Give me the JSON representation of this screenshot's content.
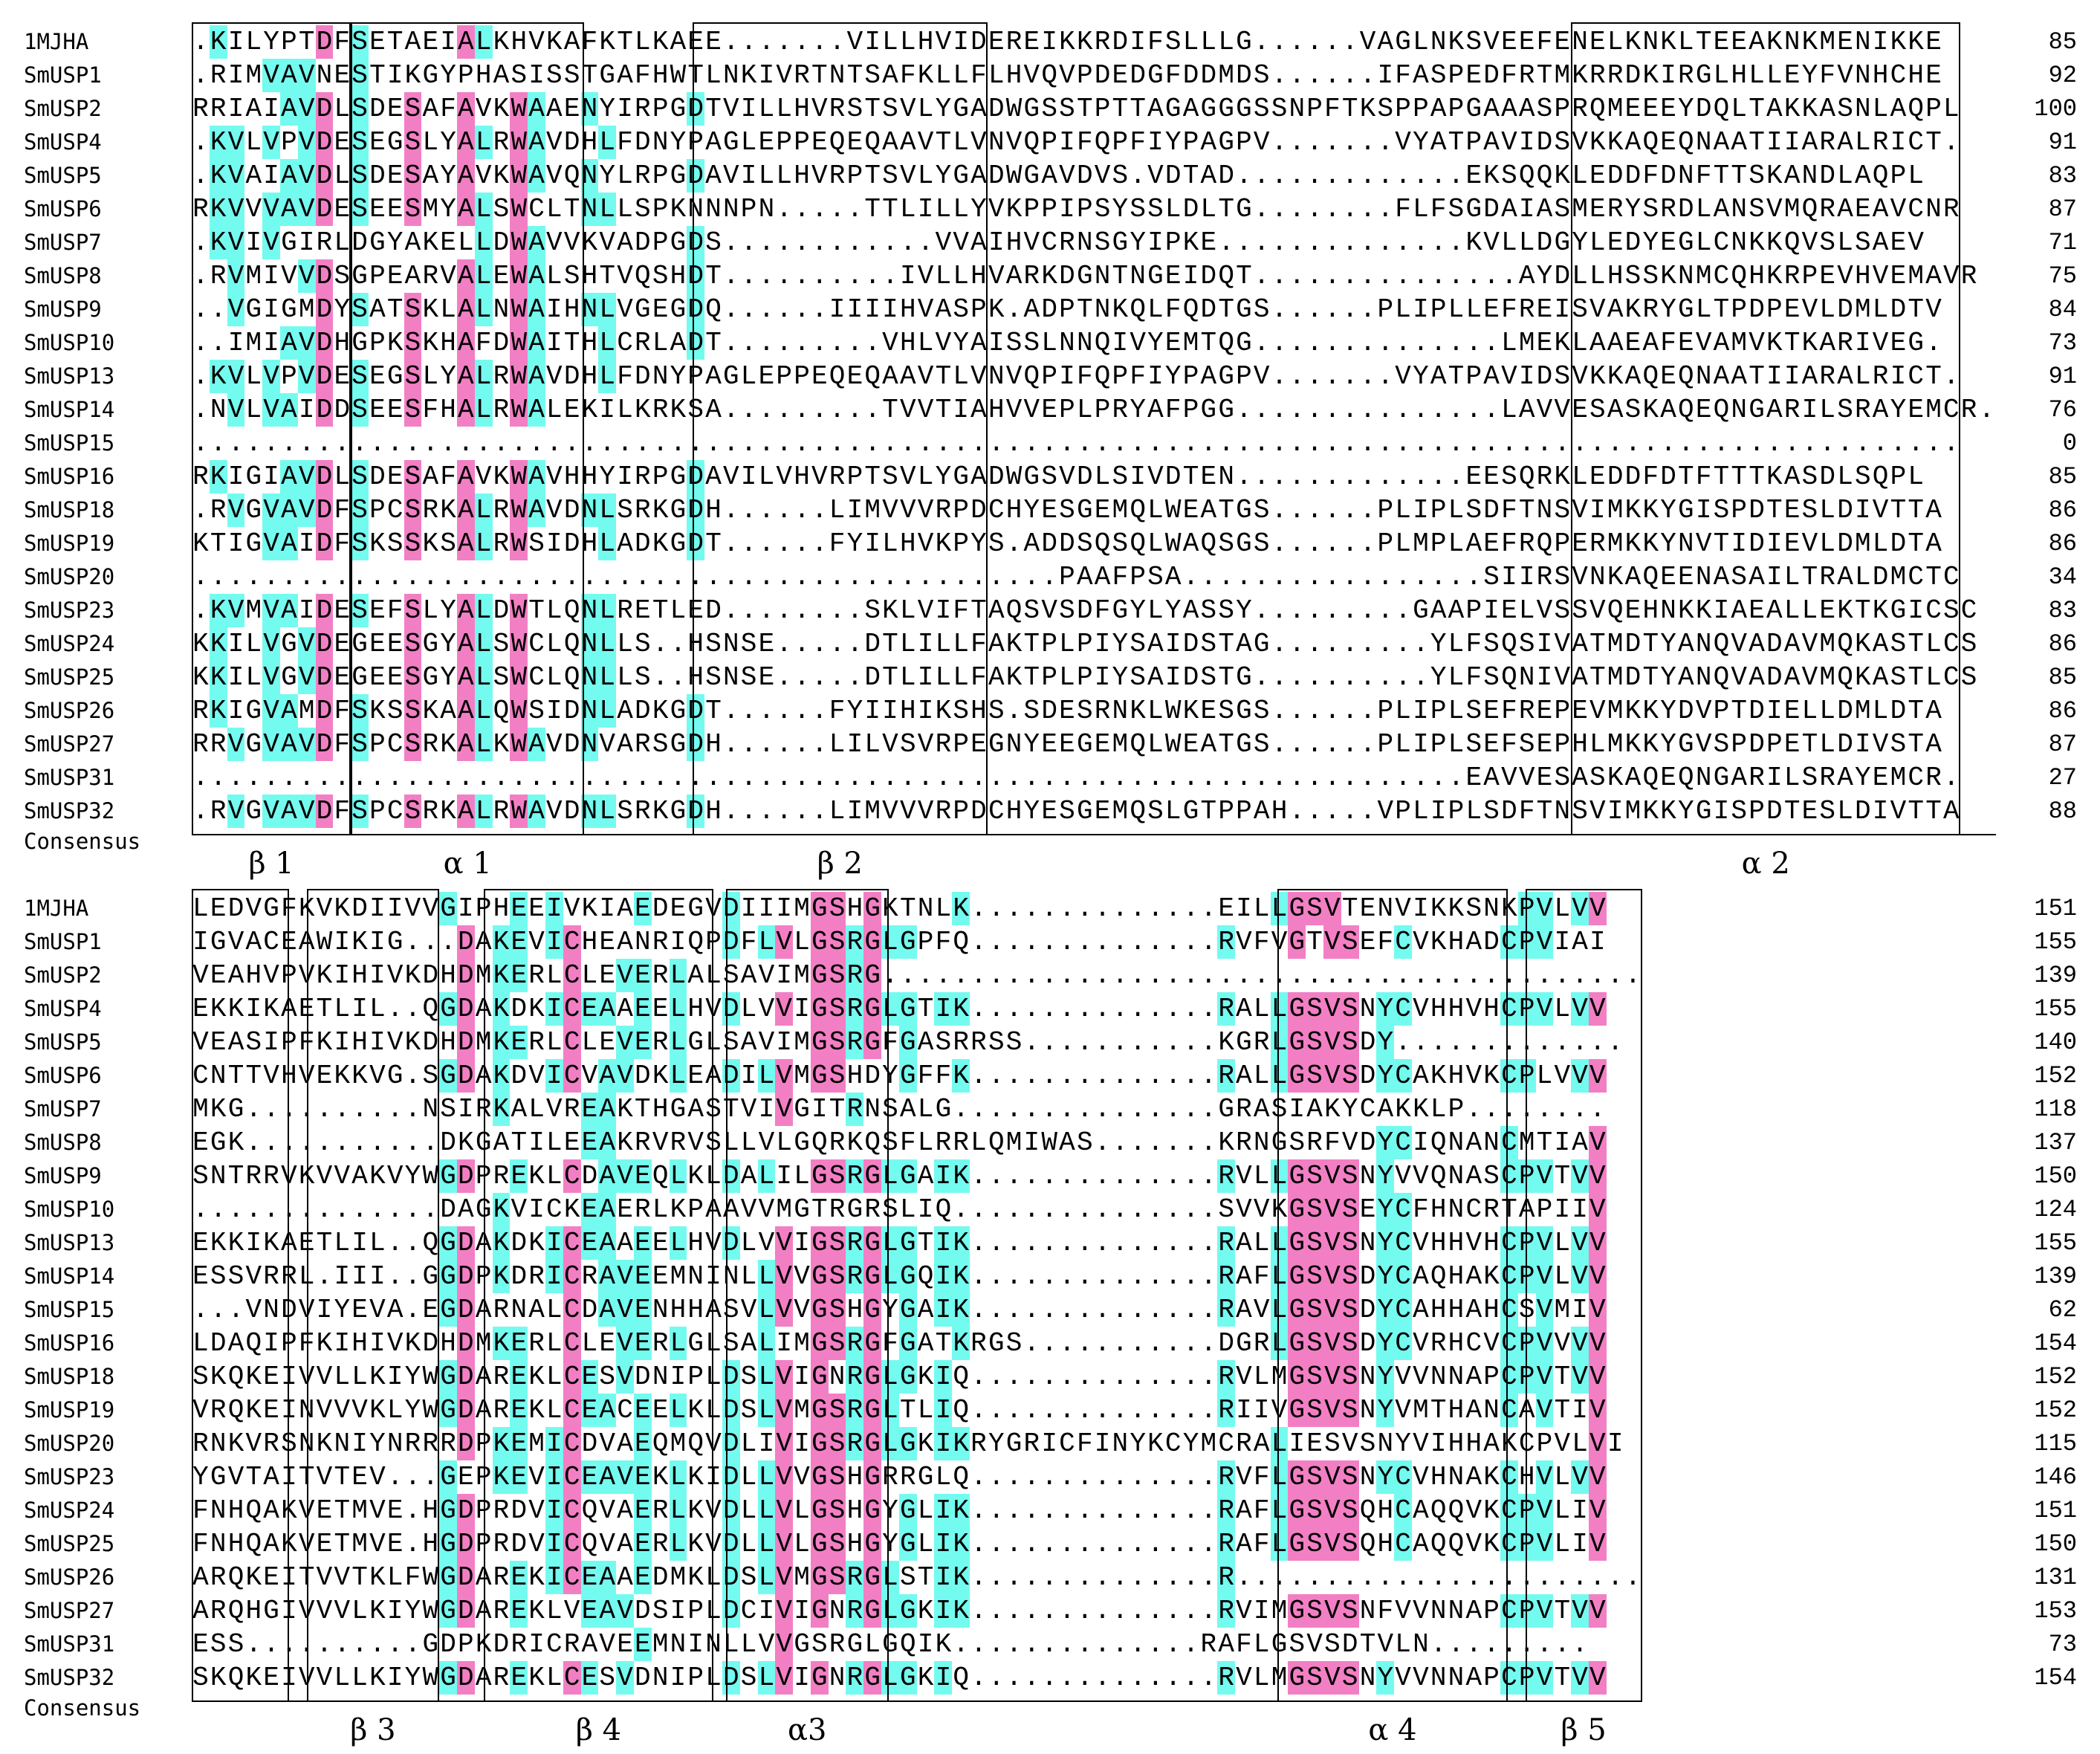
{
  "blocks": [
    {
      "rows": [
        {
          "name": "1MJHA",
          "sequence": ".KILYPTDFSETAEIALKHVKAFKTLKAEE.......VILLHVIDEREIKKRDIFSLLLG......VAGLNKSVEEFENELKNKLTEEAKNKMENIKKE",
          "end": 85
        },
        {
          "name": "SmUSP1",
          "sequence": ".RIMVAVNESTIKGYPHASISSTGAFHWTLNKIVRTNTSAFKLLFLHVQVPDEDGFDDMDS......IFASPEDFRTMKRRDKIRGLHLLEYFVNHCHE",
          "end": 92
        },
        {
          "name": "SmUSP2",
          "sequence": "RRIAIAVDLSDESAFAVKWAAENYIRPGDTVILLHVRSTSVLYGADWGSSTPTTAGAGGGSSNPFTKSPPAPGAAASPRQMEEEYDQLTAKKASNLAQPL",
          "end": 100
        },
        {
          "name": "SmUSP4",
          "sequence": ".KVLVPVDESEGSLYALRWAVDHLFDNYPAGLEPPEQEQAAVTLVNVQPIFQPFIYPAGPV.......VYATPAVIDSVKKAQEQNAATIIARALRICT.",
          "end": 91
        },
        {
          "name": "SmUSP5",
          "sequence": ".KVAIAVDLSDESAYAVKWAVQNYLRPGDAVILLHVRPTSVLYGADWGAVDVS.VDTAD.............EKSQQKLEDDFDNFTTSKANDLAQPL",
          "end": 83
        },
        {
          "name": "SmUSP6",
          "sequence": "RKVVVAVDESEESMYALSWCLTNLLSPKNNNPN.....TTLILLYVKPPIPSYSSLDLTG........FLFSGDAIASMERYSRDLANSVMQRAEAVCNR",
          "end": 87
        },
        {
          "name": "SmUSP7",
          "sequence": ".KVIVGIRLDGYAKELLDWAVVKVADPGDS............VVAIHVCRNSGYIPKE..............KVLLDGYLEDYEGLCNKKQVSLSAEV",
          "end": 71
        },
        {
          "name": "SmUSP8",
          "sequence": ".RVMIVVDSGPEARVALEWALSHTVQSHDT..........IVLLHVARKDGNTNGEIDQT...............AYDLLHSSKNMCQHKRPEVHVEMAVR",
          "end": 75
        },
        {
          "name": "SmUSP9",
          "sequence": "..VGIGMDYSATSKLALNWAIHNLVGEGDQ......IIIIHVASPK.ADPTNKQLFQDTGS......PLIPLLEFREISVAKRYGLTPDPEVLDMLDTV",
          "end": 84
        },
        {
          "name": "SmUSP10",
          "sequence": "..IMIAVDHGPKSKHAFDWAITHLCRLADT.........VHLVYAISSLNNQIVYEMTQG..............LMEKLAAEAFEVAMVKTKARIVEG.",
          "end": 73
        },
        {
          "name": "SmUSP13",
          "sequence": ".KVLVPVDESEGSLYALRWAVDHLFDNYPAGLEPPEQEQAAVTLVNVQPIFQPFIYPAGPV.......VYATPAVIDSVKKAQEQNAATIIARALRICT.",
          "end": 91
        },
        {
          "name": "SmUSP14",
          "sequence": ".NVLVAIDDSEESFHALRWALEKILKRKSA.........TVVTIAHVVEPLPRYAFPGG...............LAVVESASKAQEQNGARILSRAYEMCR.",
          "end": 76
        },
        {
          "name": "SmUSP15",
          "sequence": "....................................................................................................",
          "end": 0
        },
        {
          "name": "SmUSP16",
          "sequence": "RKIGIAVDLSDESAFAVKWAVHHYIRPGDAVILVHVRPTSVLYGADWGSVDLSIVDTEN.............EESQRKLEDDFDTFTTTKASDLSQPL",
          "end": 85
        },
        {
          "name": "SmUSP18",
          "sequence": ".RVGVAVDFSPCSRKALRWAVDNLSRKGDH......LIMVVVRPDCHYESGEMQLWEATGS......PLIPLSDFTNSVIMKKYGISPDTESLDIVTTA",
          "end": 86
        },
        {
          "name": "SmUSP19",
          "sequence": "KTIGVAIDFSKSSKSALRWSIDHLADKGDT......FYILHVKPYS.ADDSQSQLWAQSGS......PLMPLAEFRQPERMKKYNVTIDIEVLDMLDTA",
          "end": 86
        },
        {
          "name": "SmUSP20",
          "sequence": ".................................................PAAFPSA.................SIIRSVNKAQEENASAILTRALDMCTC",
          "end": 34
        },
        {
          "name": "SmUSP23",
          "sequence": ".KVMVAIDESEFSLYALDWTLQNLRETLED........SKLVIFTAQSVSDFGYLYASSY.........GAAPIELVSSVQEHNKKIAEALLEKTKGICSC",
          "end": 83
        },
        {
          "name": "SmUSP24",
          "sequence": "KKILVGVDEGEESGYALSWCLQNLLS..HSNSE.....DTLILLFAKTPLPIYSAIDSTAG.........YLFSQSIVATMDTYANQVADAVMQKASTLCS",
          "end": 86
        },
        {
          "name": "SmUSP25",
          "sequence": "KKILVGVDEGEESGYALSWCLQNLLS..HSNSE.....DTLILLFAKTPLPIYSAIDSTG..........YLFSQNIVATMDTYANQVADAVMQKASTLCS",
          "end": 85
        },
        {
          "name": "SmUSP26",
          "sequence": "RKIGVAMDFSKSSKAALQWSIDNLADKGDT......FYIIHIKSHS.SDESRNKLWKESGS......PLIPLSEFREPEVMKKYDVPTDIELLDMLDTA",
          "end": 86
        },
        {
          "name": "SmUSP27",
          "sequence": "RRVGVAVDFSPCSRKALKWAVDNVARSGDH......LILVSVRPEGNYEEGEMQLWEATGS......PLIPLSEFSEPHLMKKYGVSPDPETLDIVSTA",
          "end": 87
        },
        {
          "name": "SmUSP31",
          "sequence": "........................................................................EAVVESASKAQEQNGARILSRAYEMCR.",
          "end": 27
        },
        {
          "name": "SmUSP32",
          "sequence": ".RVGVAVDFSPCSRKALRWAVDNLSRKGDH......LIMVVVRPDCHYESGEMQSLGTPPAH.....VPLIPLSDFTNSVIMKKYGISPDTESLDIVTTA",
          "end": 88
        }
      ],
      "consensus_label": "Consensus",
      "structure_labels": [
        "β 1",
        "α 1",
        "β 2",
        "α 2"
      ]
    },
    {
      "rows": [
        {
          "name": "1MJHA",
          "sequence": "LEDVGFKVKDIIVVGIPHEEIVKIAEDEGVDIIIMGSHGKTNLK..............EILLGSVTENVIKKSNKPVLVV",
          "end": 151
        },
        {
          "name": "SmUSP1",
          "sequence": "IGVACEAWIKIG...DAKEVICHEANRIQPDFLVLGSRGLGPFQ..............RVFVGTVSEFCVKHADCPVIAI",
          "end": 155
        },
        {
          "name": "SmUSP2",
          "sequence": "VEAHVPVKIHIVKDHDMKERLCLEVERLALSAVIMGSRG...........................................",
          "end": 139
        },
        {
          "name": "SmUSP4",
          "sequence": "EKKIKAETLIL..QGDAKDKICEAAEELHVDLVVIGSRGLGTIK..............RALLGSVSNYCVHHVHCPVLVV",
          "end": 155
        },
        {
          "name": "SmUSP5",
          "sequence": "VEASIPFKIHIVKDHDMKERLCLEVERLGLSAVIMGSRGFGASRRSS...........KGRLGSVSDY.............",
          "end": 140
        },
        {
          "name": "SmUSP6",
          "sequence": "CNTTVHVEKKVG.SGDAKDVICVAVDKLEADILVMGSHDYGFFK..............RALLGSVSDYCAKHVKCPLVVV",
          "end": 152
        },
        {
          "name": "SmUSP7",
          "sequence": "MKG..........NSIRKALVREAKTHGASTVIVGITRNSALG...............GRASIAKYCAKKLP........",
          "end": 118
        },
        {
          "name": "SmUSP8",
          "sequence": "EGK...........DKGATILEEAKRVRVSLLVLGQRKQSFLRRLQMIWAS.......KRNGSRFVDYCIQNANCMTIAV",
          "end": 137
        },
        {
          "name": "SmUSP9",
          "sequence": "SNTRRVKVVAKVYWGDPREKLCDAVEQLKLDALILGSRGLGAIK..............RVLLGSVSNYVVQNASCPVTVV",
          "end": 150
        },
        {
          "name": "SmUSP10",
          "sequence": "..............DAGKVICKEAERLKPAAVVMGTRGRSLIQ...............SVVKGSVSEYCFHNCRTAPIIV",
          "end": 124
        },
        {
          "name": "SmUSP13",
          "sequence": "EKKIKAETLIL..QGDAKDKICEAAEELHVDLVVIGSRGLGTIK..............RALLGSVSNYCVHHVHCPVLVV",
          "end": 155
        },
        {
          "name": "SmUSP14",
          "sequence": "ESSVRRL.III..GGDPKDRICRAVEEMNINLLVVGSRGLGQIK..............RAFLGSVSDYCAQHAKCPVLVV",
          "end": 139
        },
        {
          "name": "SmUSP15",
          "sequence": "...VNDVIYEVA.EGDARNALCDAVENHHASVLVVGSHGYGAIK..............RAVLGSVSDYCAHHAHCSVMIV",
          "end": 62
        },
        {
          "name": "SmUSP16",
          "sequence": "LDAQIPFKIHIVKDHDMKERLCLEVERLGLSALIMGSRGFGATKRGS...........DGRLGSVSDYCVRHCVCPVVVV",
          "end": 154
        },
        {
          "name": "SmUSP18",
          "sequence": "SKQKEIVVLLKIYWGDAREKLCESVDNIPLDSLVIGNRGLGKIQ..............RVLMGSVSNYVVNNAPCPVTVV",
          "end": 152
        },
        {
          "name": "SmUSP19",
          "sequence": "VRQKEINVVVKLYWGDAREKLCEACEELKLDSLVMGSRGLTLIQ..............RIIVGSVSNYVMTHANCAVTIV",
          "end": 152
        },
        {
          "name": "SmUSP20",
          "sequence": "RNKVRSNKNIYNRRRDPKEMICDVAEQMQVDLIVIGSRGLGKIKRYGRICFINYKCYMCRALIESVSNYVIHHAKCPVLVI",
          "end": 115
        },
        {
          "name": "SmUSP23",
          "sequence": "YGVTAITVTEV...GEPKEVICEAVEKLKIDLLVVGSHGRRGLQ..............RVFLGSVSNYCVHNAKCHVLVV",
          "end": 146
        },
        {
          "name": "SmUSP24",
          "sequence": "FNHQAKVETMVE.HGDPRDVICQVAERLKVDLLVLGSHGYGLIK..............RAFLGSVSQHCAQQVKCPVLIV",
          "end": 151
        },
        {
          "name": "SmUSP25",
          "sequence": "FNHQAKVETMVE.HGDPRDVICQVAERLKVDLLVLGSHGYGLIK..............RAFLGSVSQHCAQQVKCPVLIV",
          "end": 150
        },
        {
          "name": "SmUSP26",
          "sequence": "ARQKEITVVTKLFWGDAREKICEAAEDMKLDSLVMGSRGLSTIK..............R.......................",
          "end": 131
        },
        {
          "name": "SmUSP27",
          "sequence": "ARQHGIVVVLKIYWGDAREKLVEAVDSIPLDCIVIGNRGLGKIK..............RVIMGSVSNFVVNNAPCPVTVV",
          "end": 153
        },
        {
          "name": "SmUSP31",
          "sequence": "ESS..........GDPKDRICRAVEEMNINLLVVGSRGLGQIK..............RAFLGSVSDTVLN.........",
          "end": 73
        },
        {
          "name": "SmUSP32",
          "sequence": "SKQKEIVVLLKIYWGDAREKLCESVDNIPLDSLVIGNRGLGKIQ..............RVLMGSVSNYVVNNAPCPVTVV",
          "end": 154
        }
      ],
      "consensus_label": "Consensus",
      "structure_labels": [
        "β 3",
        "β 4",
        "α3",
        "α 4",
        "β 5"
      ]
    }
  ]
}
